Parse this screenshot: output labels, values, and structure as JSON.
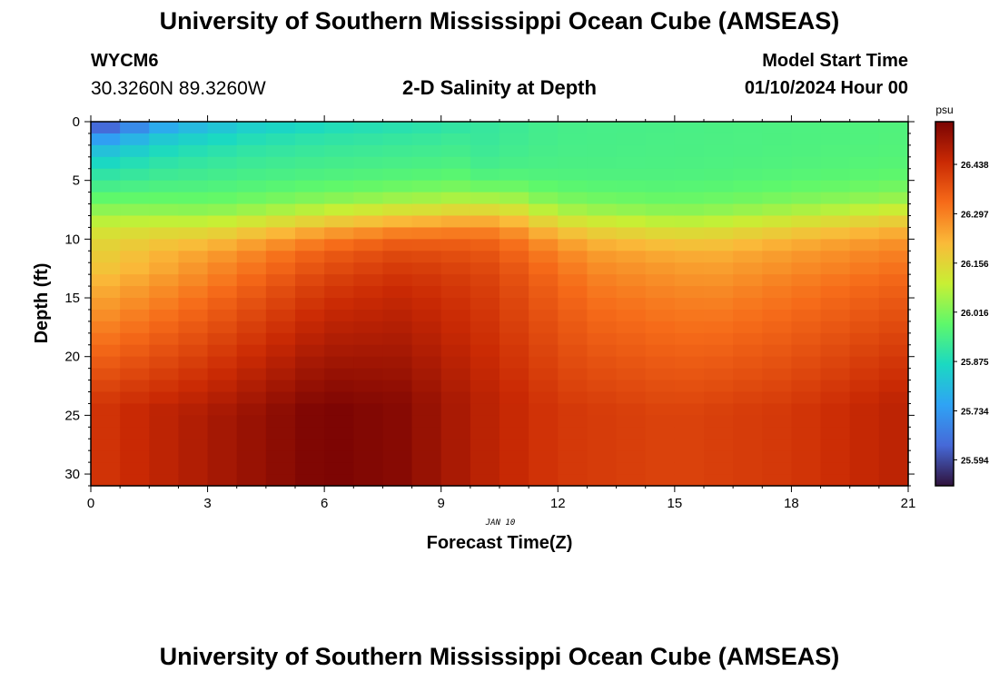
{
  "header": {
    "title": "University of Southern Mississippi Ocean Cube (AMSEAS)",
    "station_id": "WYCM6",
    "coords": "30.3260N  89.3260W",
    "chart_title": "2-D Salinity at Depth",
    "model_start_label": "Model Start Time",
    "model_start_value": "01/10/2024 Hour 00"
  },
  "footer": {
    "title": "University of Southern Mississippi Ocean Cube (AMSEAS)"
  },
  "chart_data": {
    "type": "heatmap",
    "title": "2-D Salinity at Depth",
    "xlabel": "Forecast Time(Z)",
    "ylabel": "Depth (ft)",
    "date_label": "JAN 10",
    "x_ticks": [
      0,
      3,
      6,
      9,
      12,
      15,
      18,
      21
    ],
    "y_ticks": [
      0,
      5,
      10,
      15,
      20,
      25,
      30
    ],
    "xlim": [
      0,
      21
    ],
    "ylim": [
      0,
      31
    ],
    "x_step_hours": 0.75,
    "y_step_ft": 1,
    "colorbar": {
      "unit": "psu",
      "min": 25.52,
      "max": 26.56,
      "ticks": [
        "25.594",
        "25.734",
        "25.875",
        "26.016",
        "26.156",
        "26.297",
        "26.438"
      ],
      "colors": [
        "#30123b",
        "#4669d8",
        "#2fa3f5",
        "#1bd9c2",
        "#5ef86b",
        "#c8ef34",
        "#faba39",
        "#f66b19",
        "#ca2a04",
        "#7a0403"
      ]
    },
    "field_model": {
      "surface_profile": [
        [
          0,
          25.53
        ],
        [
          2,
          25.74
        ],
        [
          4,
          25.82
        ],
        [
          6,
          25.86
        ],
        [
          9,
          25.89
        ],
        [
          10.5,
          25.92
        ],
        [
          12,
          25.94
        ],
        [
          21,
          25.96
        ]
      ],
      "mixed_layer_depth_ft": [
        [
          0,
          8
        ],
        [
          3,
          9
        ],
        [
          6,
          8.5
        ],
        [
          9,
          8
        ],
        [
          10.5,
          7.5
        ],
        [
          12,
          8.5
        ],
        [
          15,
          9
        ],
        [
          21,
          8
        ]
      ],
      "midlayer_salinity": [
        [
          0,
          26.18
        ],
        [
          3,
          26.3
        ],
        [
          6,
          26.4
        ],
        [
          8,
          26.43
        ],
        [
          10,
          26.4
        ],
        [
          13,
          26.3
        ],
        [
          16,
          26.27
        ],
        [
          21,
          26.33
        ]
      ],
      "bottom_salinity": [
        [
          0,
          26.42
        ],
        [
          3,
          26.49
        ],
        [
          6,
          26.56
        ],
        [
          8,
          26.54
        ],
        [
          10,
          26.47
        ],
        [
          12,
          26.42
        ],
        [
          15,
          26.4
        ],
        [
          18,
          26.42
        ],
        [
          21,
          26.47
        ]
      ]
    }
  }
}
